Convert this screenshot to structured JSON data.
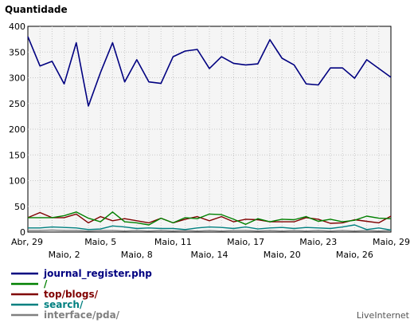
{
  "chart_data": {
    "type": "line",
    "ylabel": "Quantidade",
    "ylim": [
      0,
      400
    ],
    "y_ticks": [
      "0",
      "50",
      "100",
      "150",
      "200",
      "250",
      "300",
      "350",
      "400"
    ],
    "x_labels_row1": [
      "Abr, 29",
      "Maio, 5",
      "Maio, 11",
      "Maio, 17",
      "Maio, 23",
      "Maio, 29"
    ],
    "x_labels_row2": [
      "Maio, 2",
      "Maio, 8",
      "Maio, 14",
      "Maio, 20",
      "Maio, 26"
    ],
    "grid": true,
    "legend_position": "bottom-left",
    "series": [
      {
        "name": "journal_register.php",
        "color": "#000080",
        "values": [
          380,
          323,
          332,
          288,
          368,
          245,
          310,
          368,
          292,
          335,
          292,
          289,
          341,
          352,
          355,
          318,
          341,
          328,
          325,
          327,
          374,
          338,
          325,
          288,
          286,
          319,
          319,
          299,
          335,
          318,
          301
        ]
      },
      {
        "name": "/",
        "color": "#008000",
        "values": [
          28,
          28,
          28,
          32,
          39,
          27,
          20,
          39,
          20,
          18,
          14,
          27,
          18,
          28,
          26,
          35,
          34,
          25,
          15,
          26,
          20,
          25,
          24,
          30,
          21,
          25,
          20,
          23,
          31,
          27,
          26
        ]
      },
      {
        "name": "top/blogs/",
        "color": "#800000",
        "values": [
          28,
          38,
          28,
          28,
          35,
          18,
          30,
          22,
          26,
          22,
          18,
          27,
          18,
          25,
          30,
          22,
          30,
          20,
          25,
          24,
          20,
          20,
          20,
          28,
          25,
          17,
          18,
          24,
          21,
          18,
          31
        ]
      },
      {
        "name": "search/",
        "color": "#008080",
        "values": [
          8,
          8,
          10,
          9,
          8,
          5,
          6,
          12,
          10,
          7,
          8,
          7,
          7,
          5,
          8,
          10,
          9,
          7,
          10,
          6,
          8,
          9,
          7,
          9,
          8,
          7,
          10,
          14,
          5,
          8,
          4
        ]
      },
      {
        "name": "interface/pda/",
        "color": "#808080",
        "values": [
          3,
          3,
          4,
          3,
          3,
          2,
          3,
          3,
          2,
          3,
          2,
          3,
          2,
          3,
          2,
          3,
          2,
          3,
          3,
          2,
          3,
          2,
          3,
          2,
          3,
          2,
          3,
          2,
          3,
          2,
          3
        ]
      }
    ]
  },
  "footer": {
    "brand": "LiveInternet"
  }
}
